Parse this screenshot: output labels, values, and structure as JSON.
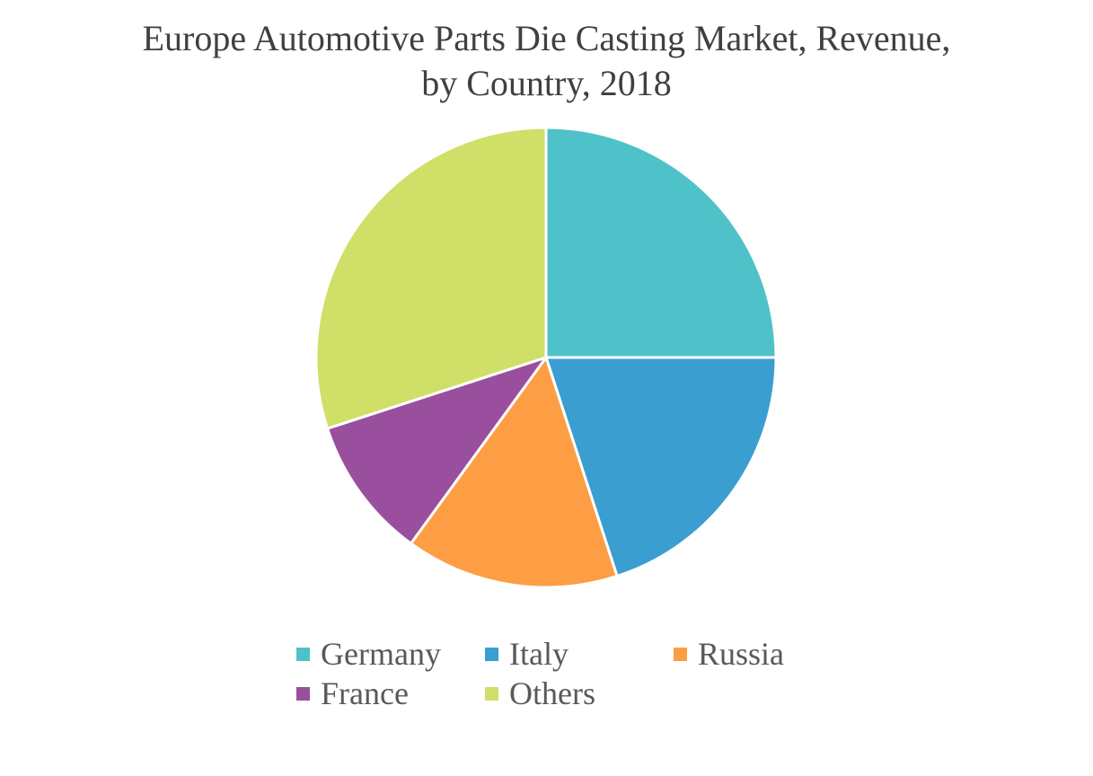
{
  "chart_data": {
    "type": "pie",
    "title_lines": [
      "Europe Automotive Parts Die Casting Market, Revenue,",
      "by Country, 2018"
    ],
    "categories": [
      "Germany",
      "Italy",
      "Russia",
      "France",
      "Others"
    ],
    "values": [
      25,
      20,
      15,
      10,
      30
    ],
    "colors": [
      "#4FC2C9",
      "#3A9ED0",
      "#FD9E45",
      "#9A4F9E",
      "#D0DF68"
    ],
    "legend_position": "bottom"
  }
}
